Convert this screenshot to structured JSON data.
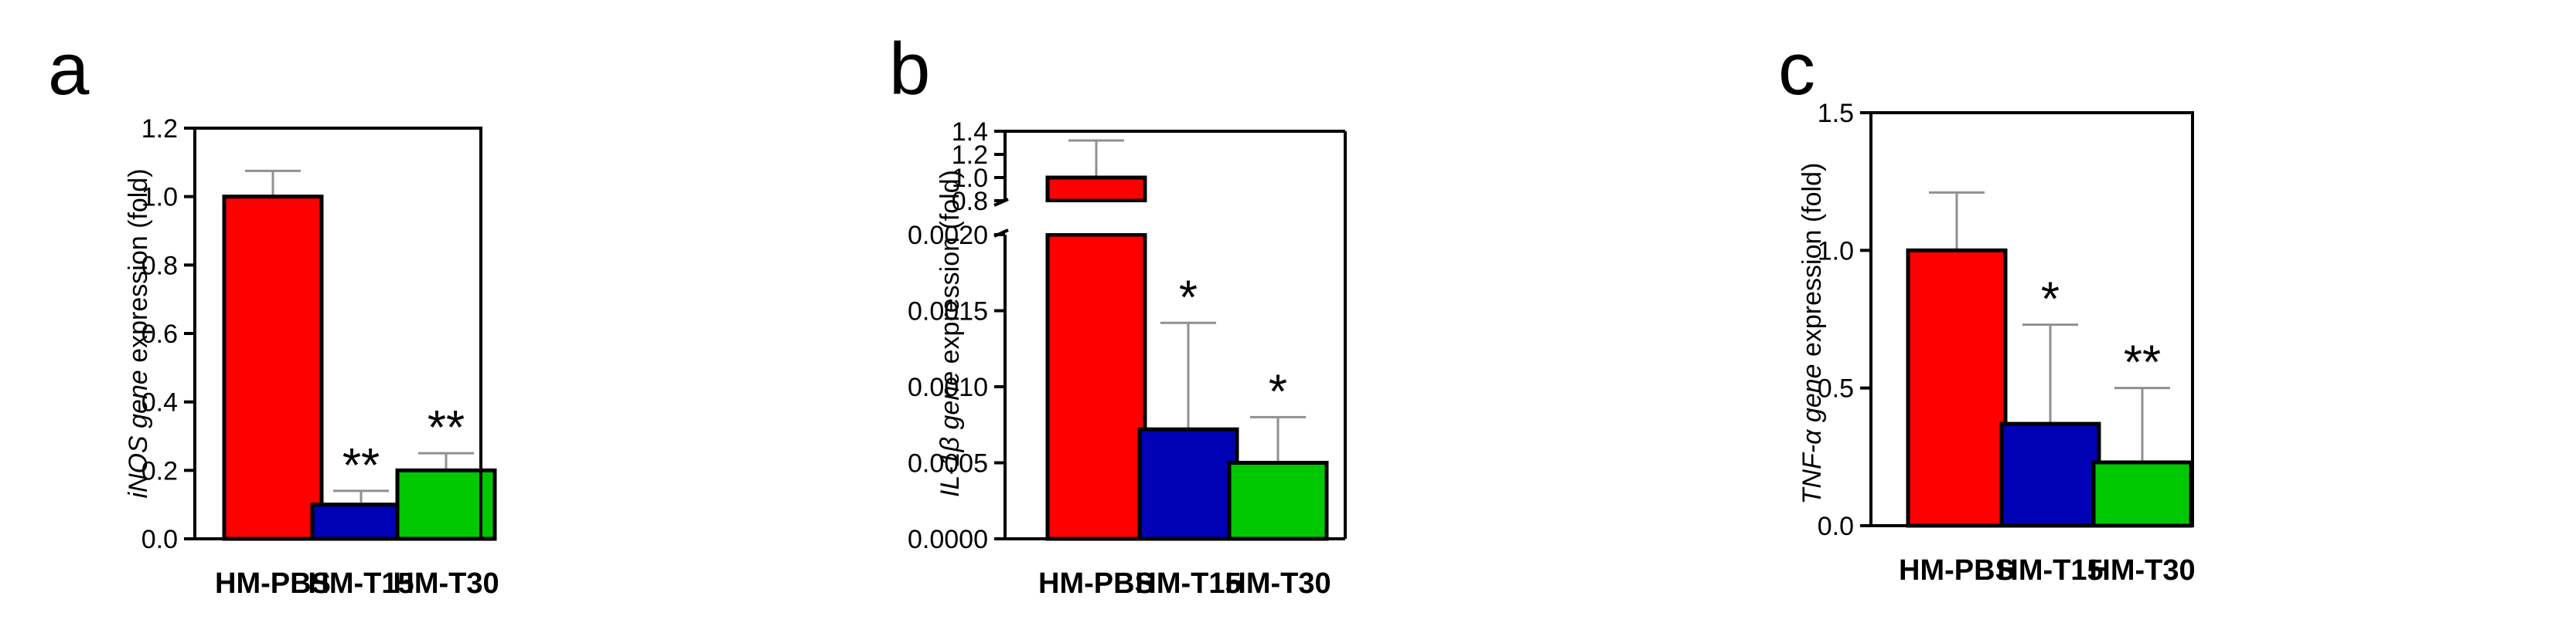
{
  "figure": {
    "colors": {
      "HM-PBS": "#ff0000",
      "HM-T15": "#0000b4",
      "HM-T30": "#00c800",
      "errorbar": "#909090",
      "axis": "#000000"
    }
  },
  "chart_data": [
    {
      "type": "bar",
      "panel_label": "a",
      "ylabel_parts": [
        {
          "text": "iNOS gene",
          "italic": true
        },
        {
          "text": " expression (fold)",
          "italic": false
        }
      ],
      "categories": [
        "HM-PBS",
        "HM-T15",
        "HM-T30"
      ],
      "values": [
        1.0,
        0.1,
        0.2
      ],
      "errors": [
        0.075,
        0.04,
        0.05
      ],
      "significance": [
        "",
        "**",
        "**"
      ],
      "ylim": [
        0,
        1.2
      ],
      "yticks": [
        "0.0",
        "0.2",
        "0.4",
        "0.6",
        "0.8",
        "1.0",
        "1.2"
      ]
    },
    {
      "type": "bar",
      "panel_label": "b",
      "broken_axis": true,
      "ylabel_parts": [
        {
          "text": "IL-1β gene",
          "italic": true
        },
        {
          "text": " expression (fold)",
          "italic": false
        }
      ],
      "categories": [
        "HM-PBS",
        "HM-T15",
        "HM-T30"
      ],
      "values": [
        1.0,
        0.00072,
        0.0005
      ],
      "errors": [
        0.32,
        0.0007,
        0.0003
      ],
      "significance": [
        "",
        "*",
        "*"
      ],
      "lower_ylim": [
        0,
        0.002
      ],
      "lower_yticks": [
        "0.0000",
        "0.0005",
        "0.0010",
        "0.0015",
        "0.0020"
      ],
      "upper_ylim": [
        0.8,
        1.4
      ],
      "upper_yticks": [
        "0.8",
        "1.0",
        "1.2",
        "1.4"
      ]
    },
    {
      "type": "bar",
      "panel_label": "c",
      "ylabel_parts": [
        {
          "text": "TNF-α gene",
          "italic": true
        },
        {
          "text": " expression (fold)",
          "italic": false
        }
      ],
      "categories": [
        "HM-PBS",
        "HM-T15",
        "HM-T30"
      ],
      "values": [
        1.0,
        0.37,
        0.23
      ],
      "errors": [
        0.21,
        0.36,
        0.27
      ],
      "significance": [
        "",
        "*",
        "**"
      ],
      "ylim": [
        0,
        1.5
      ],
      "yticks": [
        "0.0",
        "0.5",
        "1.0",
        "1.5"
      ]
    }
  ]
}
